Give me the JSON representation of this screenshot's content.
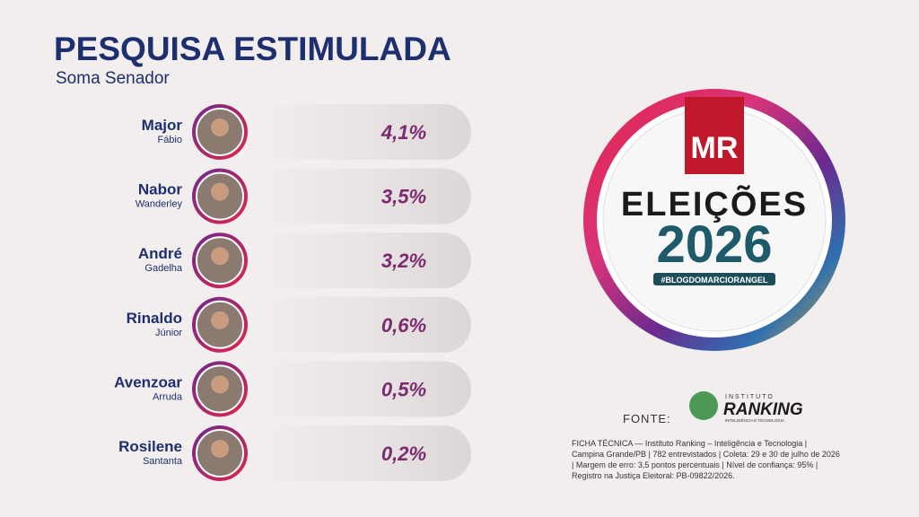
{
  "header": {
    "title": "PESQUISA ESTIMULADA",
    "subtitle": "Soma Senador"
  },
  "rows": [
    {
      "first": "Major",
      "last": "Fábio",
      "value": "4,1%"
    },
    {
      "first": "Nabor",
      "last": "Wanderley",
      "value": "3,5%"
    },
    {
      "first": "André",
      "last": "Gadelha",
      "value": "3,2%"
    },
    {
      "first": "Rinaldo",
      "last": "Júnior",
      "value": "0,6%"
    },
    {
      "first": "Avenzoar",
      "last": "Arruda",
      "value": "0,5%"
    },
    {
      "first": "Rosilene",
      "last": "Santanta",
      "value": "0,2%"
    }
  ],
  "logo": {
    "brand": "MR",
    "line1": "ELEIÇÕES",
    "line2": "2026",
    "tag": "#BLOGDOMARCIORANGEL"
  },
  "source": {
    "label": "FONTE:",
    "institute_top": "INSTITUTO",
    "institute_name": "RANKING",
    "institute_sub": "INTELIGÊNCIA E TECNOLOGIA",
    "notes": [
      "FICHA TÉCNICA — Instituto Ranking – Inteligência e Tecnologia |",
      "Campina Grande/PB | 782 entrevistados | Coleta: 29 e 30 de julho de 2026",
      "| Margem de erro: 3,5 pontos percentuais | Nível de confiança: 95% |",
      "Registro na Justiça Eleitoral: PB-09822/2026."
    ]
  }
}
